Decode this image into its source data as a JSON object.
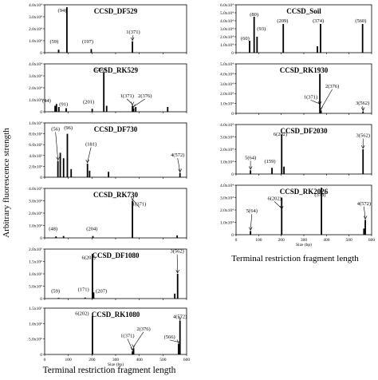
{
  "figure": {
    "ylabel": "Arbitrary fluorescence strength",
    "xlabel_left": "Terminal restriction fragment length",
    "xlabel_right": "Terminal restriction fragment length",
    "size_label": "Size (bp)"
  },
  "chart_data": [
    {
      "type": "bar",
      "title": "CCSD_DF529",
      "xlabel": "",
      "ylabel": "",
      "xlim": [
        0,
        600
      ],
      "ylim": [
        0,
        40000
      ],
      "yticks": [
        0,
        10000,
        20000,
        30000,
        40000
      ],
      "ytick_labels": [
        "0",
        "1.0x10⁴",
        "2.0x10⁴",
        "3.0x10⁴",
        "4.0x10⁴"
      ],
      "xticks": [
        0,
        100,
        200,
        300,
        400,
        500,
        600
      ],
      "xtick_labels": [],
      "peaks": [
        {
          "x": 59,
          "y": 2500
        },
        {
          "x": 94,
          "y": 38000
        },
        {
          "x": 197,
          "y": 3000
        },
        {
          "x": 371,
          "y": 9500
        }
      ],
      "annotations": [
        {
          "text": "(59)",
          "x": 40,
          "y": 8000,
          "arrow_to": null
        },
        {
          "text": "(94)",
          "x": 74,
          "y": 34000,
          "arrow_to": null
        },
        {
          "text": "(197)",
          "x": 182,
          "y": 8000,
          "arrow_to": null
        },
        {
          "text": "1(371)",
          "x": 374,
          "y": 16000,
          "arrow_to": [
            371,
            9500
          ]
        }
      ]
    },
    {
      "type": "bar",
      "title": "CCSD_RK529",
      "xlabel": "",
      "ylabel": "",
      "xlim": [
        0,
        600
      ],
      "ylim": [
        0,
        40000
      ],
      "yticks": [
        0,
        10000,
        20000,
        30000,
        40000
      ],
      "ytick_labels": [
        "0",
        "1.0x10⁴",
        "2.0x10⁴",
        "3.0x10⁴",
        "4.0x10⁴"
      ],
      "xticks": [
        0,
        100,
        200,
        300,
        400,
        500,
        600
      ],
      "xtick_labels": [],
      "peaks": [
        {
          "x": 44,
          "y": 5000
        },
        {
          "x": 50,
          "y": 6500
        },
        {
          "x": 60,
          "y": 4000
        },
        {
          "x": 91,
          "y": 3000
        },
        {
          "x": 201,
          "y": 2500
        },
        {
          "x": 250,
          "y": 33000
        },
        {
          "x": 262,
          "y": 5000
        },
        {
          "x": 371,
          "y": 5000
        },
        {
          "x": 376,
          "y": 3000
        },
        {
          "x": 385,
          "y": 4000
        },
        {
          "x": 520,
          "y": 4000
        }
      ],
      "annotations": [
        {
          "text": "(44)",
          "x": 8,
          "y": 8000,
          "arrow_to": null
        },
        {
          "text": "(91)",
          "x": 80,
          "y": 5000,
          "arrow_to": null
        },
        {
          "text": "(201)",
          "x": 186,
          "y": 7000,
          "arrow_to": null
        },
        {
          "text": "(250)",
          "x": 238,
          "y": 34000,
          "arrow_to": null
        },
        {
          "text": "1(371)",
          "x": 348,
          "y": 12000,
          "arrow_to": [
            371,
            5000
          ]
        },
        {
          "text": "2(376)",
          "x": 424,
          "y": 12000,
          "arrow_to": [
            376,
            3000
          ]
        }
      ]
    },
    {
      "type": "bar",
      "title": "CCSD_DF730",
      "xlabel": "",
      "ylabel": "",
      "xlim": [
        0,
        600
      ],
      "ylim": [
        0,
        10000
      ],
      "yticks": [
        0,
        2000,
        4000,
        6000,
        8000,
        10000
      ],
      "ytick_labels": [
        "0",
        "2.0x10³",
        "4.0x10³",
        "6.0x10³",
        "8.0x10³",
        "1.0x10⁴"
      ],
      "xticks": [
        0,
        100,
        200,
        300,
        400,
        500,
        600
      ],
      "xtick_labels": [],
      "peaks": [
        {
          "x": 56,
          "y": 3000
        },
        {
          "x": 66,
          "y": 4500
        },
        {
          "x": 80,
          "y": 3500
        },
        {
          "x": 96,
          "y": 8000
        },
        {
          "x": 112,
          "y": 1500
        },
        {
          "x": 181,
          "y": 2500
        },
        {
          "x": 190,
          "y": 1200
        },
        {
          "x": 270,
          "y": 1000
        },
        {
          "x": 572,
          "y": 800
        }
      ],
      "annotations": [
        {
          "text": "(56)",
          "x": 46,
          "y": 8600,
          "arrow_to": [
            56,
            3000
          ]
        },
        {
          "text": "(96)",
          "x": 100,
          "y": 8800,
          "arrow_to": null
        },
        {
          "text": "(181)",
          "x": 196,
          "y": 5800,
          "arrow_to": [
            181,
            2500
          ]
        },
        {
          "text": "4(572)",
          "x": 562,
          "y": 3800,
          "arrow_to": [
            572,
            800
          ]
        }
      ]
    },
    {
      "type": "bar",
      "title": "CCSD_RK730",
      "xlabel": "",
      "ylabel": "",
      "xlim": [
        0,
        600
      ],
      "ylim": [
        0,
        40000
      ],
      "yticks": [
        0,
        10000,
        20000,
        30000,
        40000
      ],
      "ytick_labels": [
        "0",
        "1.0x10⁴",
        "2.0x10⁴",
        "3.0x10⁴",
        "4.0x10⁴"
      ],
      "xticks": [
        0,
        100,
        200,
        300,
        400,
        500,
        600
      ],
      "xtick_labels": [],
      "peaks": [
        {
          "x": 48,
          "y": 1200
        },
        {
          "x": 80,
          "y": 1500
        },
        {
          "x": 204,
          "y": 1500
        },
        {
          "x": 371,
          "y": 30000
        },
        {
          "x": 560,
          "y": 2000
        }
      ],
      "annotations": [
        {
          "text": "(48)",
          "x": 36,
          "y": 6000,
          "arrow_to": null
        },
        {
          "text": "(204)",
          "x": 200,
          "y": 6000,
          "arrow_to": null
        },
        {
          "text": "1(371)",
          "x": 400,
          "y": 26000,
          "arrow_to": [
            371,
            30000
          ]
        }
      ]
    },
    {
      "type": "bar",
      "title": "CCSD_DF1080",
      "xlabel": "",
      "ylabel": "",
      "xlim": [
        0,
        600
      ],
      "ylim": [
        0,
        2000000
      ],
      "yticks": [
        0,
        500000,
        1000000,
        1500000,
        2000000
      ],
      "ytick_labels": [
        "0",
        "5.0x10⁵",
        "1.0x10⁶",
        "1.5x10⁶",
        "2.0x10⁶"
      ],
      "xticks": [
        0,
        100,
        200,
        300,
        400,
        500,
        600
      ],
      "xtick_labels": [],
      "peaks": [
        {
          "x": 59,
          "y": 30000
        },
        {
          "x": 171,
          "y": 40000
        },
        {
          "x": 202,
          "y": 1800000
        },
        {
          "x": 207,
          "y": 250000
        },
        {
          "x": 550,
          "y": 200000
        },
        {
          "x": 562,
          "y": 1000000
        }
      ],
      "annotations": [
        {
          "text": "(59)",
          "x": 46,
          "y": 250000,
          "arrow_to": null
        },
        {
          "text": "(171)",
          "x": 164,
          "y": 300000,
          "arrow_to": null
        },
        {
          "text": "6(202)",
          "x": 186,
          "y": 1600000,
          "arrow_to": null
        },
        {
          "text": "(207)",
          "x": 240,
          "y": 250000,
          "arrow_to": null
        },
        {
          "text": "3(562)",
          "x": 560,
          "y": 1850000,
          "arrow_to": [
            562,
            1000000
          ]
        }
      ]
    },
    {
      "type": "bar",
      "title": "CCSD_RK1080",
      "xlabel": "",
      "ylabel": "",
      "xlim": [
        0,
        600
      ],
      "ylim": [
        0,
        1500000
      ],
      "yticks": [
        0,
        500000,
        1000000,
        1500000
      ],
      "ytick_labels": [
        "0",
        "5.0x10⁵",
        "1.0x10⁶",
        "1.5x10⁶"
      ],
      "xticks": [
        0,
        100,
        200,
        300,
        400,
        500,
        600
      ],
      "xtick_labels": [
        "0",
        "100",
        "200",
        "300",
        "400",
        "500",
        "600"
      ],
      "peaks": [
        {
          "x": 202,
          "y": 1250000
        },
        {
          "x": 371,
          "y": 100000
        },
        {
          "x": 376,
          "y": 200000
        },
        {
          "x": 566,
          "y": 350000
        },
        {
          "x": 572,
          "y": 1100000
        }
      ],
      "annotations": [
        {
          "text": "6(202)",
          "x": 158,
          "y": 1280000,
          "arrow_to": null
        },
        {
          "text": "1(371)",
          "x": 350,
          "y": 560000,
          "arrow_to": [
            371,
            100000
          ]
        },
        {
          "text": "2(376)",
          "x": 418,
          "y": 780000,
          "arrow_to": [
            376,
            200000
          ]
        },
        {
          "text": "(566)",
          "x": 528,
          "y": 520000,
          "arrow_to": [
            566,
            350000
          ]
        },
        {
          "text": "4(572)",
          "x": 572,
          "y": 1180000,
          "arrow_to": [
            572,
            1100000
          ]
        }
      ]
    },
    {
      "type": "bar",
      "title": "CCSD_Soil",
      "xlabel": "",
      "ylabel": "",
      "xlim": [
        0,
        600
      ],
      "ylim": [
        0,
        60000
      ],
      "yticks": [
        0,
        10000,
        20000,
        30000,
        40000,
        50000,
        60000
      ],
      "ytick_labels": [
        "0",
        "1.0x10⁴",
        "2.0x10⁴",
        "3.0x10⁴",
        "4.0x10⁴",
        "5.0x10⁴",
        "6.0x10⁴"
      ],
      "xticks": [
        0,
        100,
        200,
        300,
        400,
        500,
        600
      ],
      "xtick_labels": [],
      "peaks": [
        {
          "x": 60,
          "y": 15000
        },
        {
          "x": 80,
          "y": 45000
        },
        {
          "x": 93,
          "y": 20000
        },
        {
          "x": 209,
          "y": 36000
        },
        {
          "x": 360,
          "y": 8000
        },
        {
          "x": 374,
          "y": 36000
        },
        {
          "x": 560,
          "y": 36000
        }
      ],
      "annotations": [
        {
          "text": "(60)",
          "x": 40,
          "y": 16000,
          "arrow_to": null
        },
        {
          "text": "(80)",
          "x": 80,
          "y": 46000,
          "arrow_to": null
        },
        {
          "text": "(93)",
          "x": 112,
          "y": 28000,
          "arrow_to": null
        },
        {
          "text": "(209)",
          "x": 206,
          "y": 38000,
          "arrow_to": null
        },
        {
          "text": "(374)",
          "x": 364,
          "y": 38000,
          "arrow_to": null
        },
        {
          "text": "(560)",
          "x": 552,
          "y": 38000,
          "arrow_to": null
        }
      ]
    },
    {
      "type": "bar",
      "title": "CCSD_RK1930",
      "xlabel": "",
      "ylabel": "",
      "xlim": [
        0,
        600
      ],
      "ylim": [
        0,
        50000
      ],
      "yticks": [
        0,
        10000,
        20000,
        30000,
        40000,
        50000
      ],
      "ytick_labels": [
        "0",
        "1.0x10⁴",
        "2.0x10⁴",
        "3.0x10⁴",
        "4.0x10⁴",
        "5.0x10⁴"
      ],
      "xticks": [
        0,
        100,
        200,
        300,
        400,
        500,
        600
      ],
      "xtick_labels": [],
      "peaks": [
        {
          "x": 371,
          "y": 40000
        },
        {
          "x": 376,
          "y": 3000
        },
        {
          "x": 562,
          "y": 2000
        }
      ],
      "annotations": [
        {
          "text": "2(376)",
          "x": 426,
          "y": 26000,
          "arrow_to": [
            376,
            3000
          ]
        },
        {
          "text": "1(371)",
          "x": 330,
          "y": 15000,
          "arrow_to": [
            371,
            8000
          ]
        },
        {
          "text": "3(562)",
          "x": 560,
          "y": 9000,
          "arrow_to": [
            562,
            2000
          ]
        }
      ]
    },
    {
      "type": "bar",
      "title": "CCSD_DF2030",
      "xlabel": "",
      "ylabel": "",
      "xlim": [
        0,
        600
      ],
      "ylim": [
        0,
        40000
      ],
      "yticks": [
        0,
        10000,
        20000,
        30000,
        40000
      ],
      "ytick_labels": [
        "0",
        "1.0x10⁴",
        "2.0x10⁴",
        "3.0x10⁴",
        "4.0x10⁴"
      ],
      "xticks": [
        0,
        100,
        200,
        300,
        400,
        500,
        600
      ],
      "xtick_labels": [],
      "peaks": [
        {
          "x": 64,
          "y": 3000
        },
        {
          "x": 159,
          "y": 5000
        },
        {
          "x": 202,
          "y": 32000
        },
        {
          "x": 212,
          "y": 6000
        },
        {
          "x": 562,
          "y": 20000
        }
      ],
      "annotations": [
        {
          "text": "5(64)",
          "x": 64,
          "y": 12000,
          "arrow_to": [
            64,
            3000
          ]
        },
        {
          "text": "(159)",
          "x": 150,
          "y": 9000,
          "arrow_to": null
        },
        {
          "text": "6(202)",
          "x": 196,
          "y": 31000,
          "arrow_to": null
        },
        {
          "text": "3(562)",
          "x": 562,
          "y": 30000,
          "arrow_to": [
            562,
            20000
          ]
        }
      ]
    },
    {
      "type": "bar",
      "title": "CCSD_RK2026",
      "xlabel": "",
      "ylabel": "",
      "xlim": [
        0,
        600
      ],
      "ylim": [
        0,
        40000
      ],
      "yticks": [
        0,
        10000,
        20000,
        30000,
        40000
      ],
      "ytick_labels": [
        "0",
        "1.0x10⁴",
        "2.0x10⁴",
        "3.0x10⁴",
        "4.0x10⁴"
      ],
      "xticks": [
        0,
        100,
        200,
        300,
        400,
        500,
        600
      ],
      "xtick_labels": [
        "0",
        "100",
        "200",
        "300",
        "400",
        "500",
        "600"
      ],
      "peaks": [
        {
          "x": 64,
          "y": 3000
        },
        {
          "x": 202,
          "y": 30000
        },
        {
          "x": 378,
          "y": 38000
        },
        {
          "x": 566,
          "y": 5000
        },
        {
          "x": 572,
          "y": 12000
        }
      ],
      "annotations": [
        {
          "text": "5(64)",
          "x": 70,
          "y": 18000,
          "arrow_to": [
            64,
            3000
          ]
        },
        {
          "text": "6(202)",
          "x": 170,
          "y": 28000,
          "arrow_to": [
            202,
            20000
          ]
        },
        {
          "text": "(378)",
          "x": 372,
          "y": 31000,
          "arrow_to": null
        },
        {
          "text": "4(572)",
          "x": 566,
          "y": 24000,
          "arrow_to": [
            572,
            12000
          ]
        }
      ]
    }
  ]
}
